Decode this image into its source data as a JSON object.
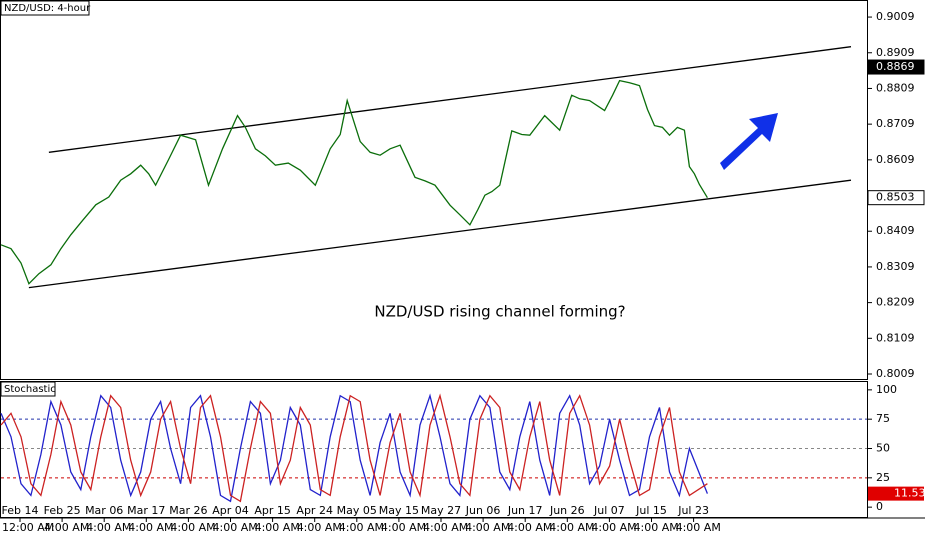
{
  "chart_data": [
    {
      "type": "line",
      "title": "NZD/USD: 4-hour",
      "annotation": "NZD/USD rising channel forming?",
      "x": [
        0,
        10,
        20,
        28,
        38,
        50,
        60,
        70,
        82,
        95,
        108,
        120,
        130,
        140,
        148,
        155,
        168,
        180,
        195,
        208,
        222,
        237,
        245,
        255,
        265,
        275,
        288,
        300,
        315,
        330,
        340,
        347,
        360,
        370,
        380,
        390,
        400,
        415,
        425,
        435,
        450,
        460,
        470,
        478,
        485,
        492,
        500,
        512,
        522,
        530,
        545,
        560,
        572,
        580,
        590,
        605,
        613,
        620,
        630,
        640,
        648,
        655,
        663,
        670,
        678,
        685,
        690,
        695,
        700,
        708
      ],
      "values": [
        0.8371,
        0.836,
        0.832,
        0.8262,
        0.829,
        0.8315,
        0.836,
        0.8399,
        0.844,
        0.8483,
        0.8505,
        0.8552,
        0.857,
        0.8594,
        0.857,
        0.8538,
        0.861,
        0.8678,
        0.8665,
        0.8538,
        0.864,
        0.8733,
        0.87,
        0.864,
        0.862,
        0.8594,
        0.86,
        0.858,
        0.8538,
        0.864,
        0.868,
        0.8775,
        0.866,
        0.863,
        0.8622,
        0.864,
        0.865,
        0.856,
        0.855,
        0.8538,
        0.8482,
        0.8455,
        0.8427,
        0.847,
        0.851,
        0.852,
        0.8538,
        0.869,
        0.868,
        0.8678,
        0.8733,
        0.8692,
        0.879,
        0.878,
        0.8775,
        0.8747,
        0.879,
        0.8831,
        0.8825,
        0.8817,
        0.875,
        0.8705,
        0.87,
        0.8678,
        0.87,
        0.8692,
        0.859,
        0.857,
        0.854,
        0.8503
      ],
      "color": "#0b6e0b",
      "xlim": [
        0,
        868
      ],
      "ylim": [
        0.7995,
        0.9054
      ],
      "yticks": [
        0.9009,
        0.8909,
        0.8809,
        0.8709,
        0.8609,
        0.8509,
        0.8409,
        0.8309,
        0.8209,
        0.8109,
        0.8009
      ],
      "price_labels": [
        0.8869,
        0.8503
      ],
      "trendlines": [
        {
          "x": [
            48,
            852
          ],
          "values": [
            0.863,
            0.8926
          ]
        },
        {
          "x": [
            28,
            852
          ],
          "values": [
            0.8251,
            0.8552
          ]
        }
      ]
    },
    {
      "type": "line",
      "title": "Stochastic",
      "xlim": [
        0,
        868
      ],
      "ylim": [
        -8.4,
        106.7
      ],
      "yticks": [
        100,
        75,
        50,
        25,
        0
      ],
      "levels": [
        75,
        50,
        25
      ],
      "level_colors": [
        "#2233aa",
        "#888888",
        "#cc0000"
      ],
      "last_label": 11.53,
      "x": [
        0,
        10,
        20,
        30,
        40,
        50,
        60,
        70,
        80,
        90,
        100,
        110,
        120,
        130,
        140,
        150,
        160,
        170,
        180,
        190,
        200,
        210,
        220,
        230,
        240,
        250,
        260,
        270,
        280,
        290,
        300,
        310,
        320,
        330,
        340,
        350,
        360,
        370,
        380,
        390,
        400,
        410,
        420,
        430,
        440,
        450,
        460,
        470,
        480,
        490,
        500,
        510,
        520,
        530,
        540,
        550,
        560,
        570,
        580,
        590,
        600,
        610,
        620,
        630,
        640,
        650,
        660,
        670,
        680,
        690,
        708
      ],
      "series": [
        {
          "color": "#2222cc",
          "values": [
            80,
            60,
            20,
            10,
            45,
            90,
            70,
            30,
            15,
            60,
            95,
            85,
            40,
            10,
            30,
            75,
            90,
            50,
            20,
            85,
            95,
            60,
            10,
            5,
            50,
            90,
            80,
            20,
            40,
            85,
            70,
            15,
            10,
            60,
            95,
            90,
            40,
            10,
            55,
            80,
            30,
            10,
            70,
            95,
            60,
            20,
            10,
            75,
            95,
            85,
            30,
            15,
            60,
            90,
            40,
            10,
            80,
            95,
            70,
            20,
            35,
            75,
            40,
            10,
            15,
            60,
            85,
            30,
            10,
            50,
            11.53
          ]
        },
        {
          "color": "#cc2222",
          "values": [
            70,
            80,
            60,
            20,
            10,
            45,
            90,
            70,
            30,
            15,
            60,
            95,
            85,
            40,
            10,
            30,
            75,
            90,
            50,
            20,
            85,
            95,
            60,
            10,
            5,
            50,
            90,
            80,
            20,
            40,
            85,
            70,
            15,
            10,
            60,
            95,
            90,
            40,
            10,
            55,
            80,
            30,
            10,
            70,
            95,
            60,
            20,
            10,
            75,
            95,
            85,
            30,
            15,
            60,
            90,
            40,
            10,
            80,
            95,
            70,
            20,
            35,
            75,
            40,
            10,
            15,
            60,
            85,
            30,
            10,
            20
          ]
        }
      ]
    },
    {
      "type": "time_axis",
      "date_labels": [
        "Feb 14",
        "Feb 25",
        "Mar 06",
        "Mar 17",
        "Mar 26",
        "Apr 04",
        "Apr 15",
        "Apr 24",
        "May 05",
        "May 15",
        "May 27",
        "Jun 06",
        "Jun 17",
        "Jun 26",
        "Jul 07",
        "Jul 15",
        "Jul 23"
      ],
      "time_labels": [
        "12:00 AM",
        "4:00 AM",
        "4:00 AM",
        "4:00 AM",
        "4:00 AM",
        "4:00 AM",
        "4:00 AM",
        "4:00 AM",
        "4:00 AM",
        "4:00 AM",
        "4:00 AM",
        "4:00 AM",
        "4:00 AM",
        "4:00 AM",
        "4:00 AM",
        "4:00 AM",
        "4:00 AM"
      ]
    }
  ]
}
